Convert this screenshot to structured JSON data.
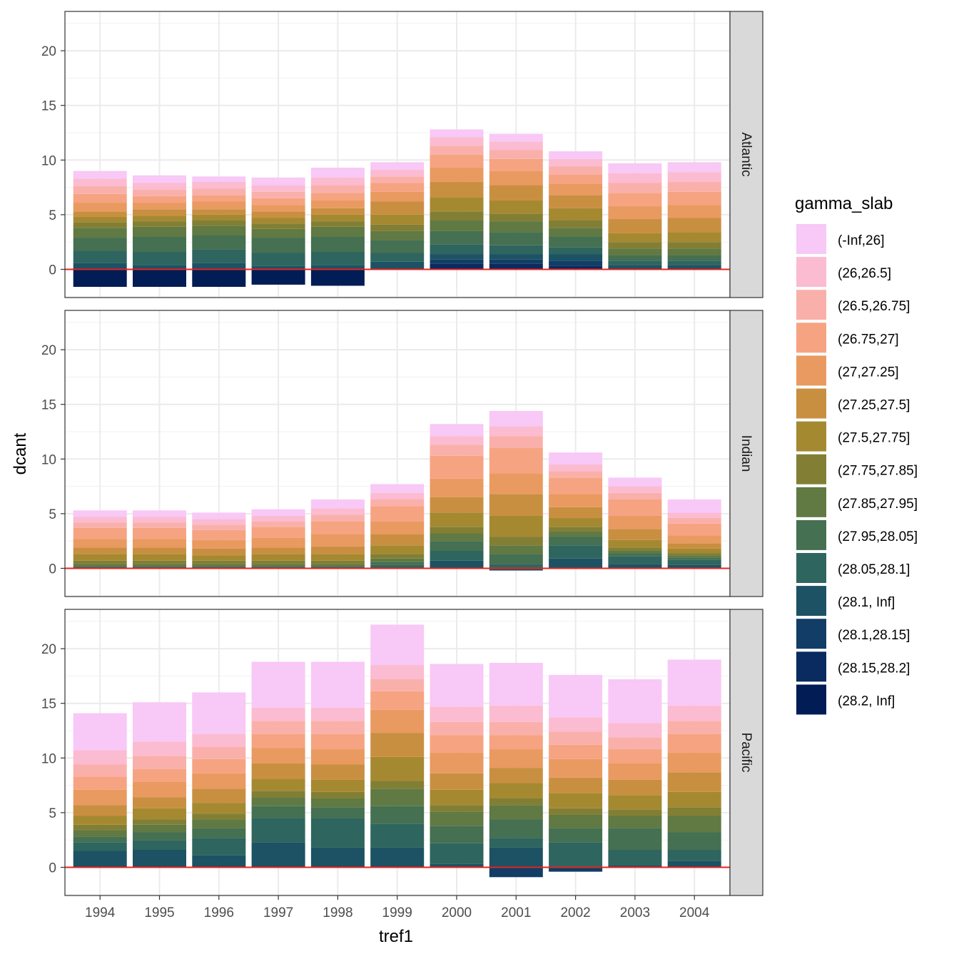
{
  "chart_data": {
    "type": "bar",
    "stacked": true,
    "xlabel": "tref1",
    "ylabel": "dcant",
    "ylim": [
      -3.2,
      23.5
    ],
    "yticks": [
      0,
      5,
      10,
      15,
      20
    ],
    "grid": true,
    "legend_position": "right",
    "hline": {
      "y": 0,
      "color": "#e8231c"
    },
    "legend": {
      "title": "gamma_slab",
      "entries": [
        {
          "label": "(-Inf,26]",
          "color": "#f8c8f6"
        },
        {
          "label": "(26,26.5]",
          "color": "#fbbbd1"
        },
        {
          "label": "(26.5,26.75]",
          "color": "#fab0aa"
        },
        {
          "label": "(26.75,27]",
          "color": "#f6a382"
        },
        {
          "label": "(27,27.25]",
          "color": "#e99a60"
        },
        {
          "label": "(27.25,27.5]",
          "color": "#c98f41"
        },
        {
          "label": "(27.5,27.75]",
          "color": "#a58931"
        },
        {
          "label": "(27.75,27.85]",
          "color": "#827f35"
        },
        {
          "label": "(27.85,27.95]",
          "color": "#617942"
        },
        {
          "label": "(27.95,28.05]",
          "color": "#457051"
        },
        {
          "label": "(28.05,28.1]",
          "color": "#2f655f"
        },
        {
          "label": "(28.1, Inf]",
          "color": "#1c5264"
        },
        {
          "label": "(28.1,28.15]",
          "color": "#113d66"
        },
        {
          "label": "(28.15,28.2]",
          "color": "#0a2b60"
        },
        {
          "label": "(28.2, Inf]",
          "color": "#021c55"
        }
      ]
    },
    "categories": [
      "1994",
      "1995",
      "1996",
      "1997",
      "1998",
      "1999",
      "2000",
      "2001",
      "2002",
      "2003",
      "2004"
    ],
    "panels": [
      {
        "label": "Atlantic",
        "values": [
          [
            0.7,
            0.7,
            0.5,
            0.7,
            0.9,
            0.7,
            0.7,
            0.7,
            0.7,
            0.9,
            0.9
          ],
          [
            0.7,
            0.6,
            0.6,
            0.6,
            0.7,
            0.6,
            0.8,
            0.8,
            0.7,
            0.9,
            0.9
          ],
          [
            0.7,
            0.6,
            0.6,
            0.6,
            0.7,
            0.6,
            0.8,
            0.8,
            0.7,
            0.9,
            0.9
          ],
          [
            0.8,
            0.6,
            0.6,
            0.6,
            0.7,
            0.8,
            1.2,
            1.1,
            0.9,
            1.2,
            1.2
          ],
          [
            0.8,
            0.6,
            0.7,
            0.6,
            0.7,
            0.9,
            1.3,
            1.3,
            1.0,
            1.2,
            1.2
          ],
          [
            0.5,
            0.6,
            0.5,
            0.6,
            0.6,
            1.2,
            1.4,
            1.4,
            1.2,
            1.3,
            1.3
          ],
          [
            0.5,
            0.5,
            0.5,
            0.5,
            0.6,
            0.9,
            1.3,
            1.2,
            1.1,
            0.8,
            0.9
          ],
          [
            0.5,
            0.5,
            0.5,
            0.5,
            0.5,
            0.6,
            0.8,
            0.7,
            0.7,
            0.6,
            0.6
          ],
          [
            0.9,
            0.9,
            0.9,
            0.8,
            0.9,
            0.8,
            1.0,
            1.0,
            0.8,
            0.6,
            0.6
          ],
          [
            1.2,
            1.4,
            1.3,
            1.4,
            1.4,
            1.2,
            1.2,
            1.2,
            1.0,
            0.5,
            0.5
          ],
          [
            1.1,
            1.2,
            1.2,
            1.2,
            1.2,
            0.8,
            0.9,
            0.8,
            0.6,
            0.4,
            0.4
          ],
          [
            0.6,
            0.4,
            0.6,
            0.3,
            0.4,
            0.7,
            0.5,
            0.5,
            0.6,
            0.3,
            0.3
          ],
          [
            0,
            0,
            0,
            0,
            0,
            0,
            0.4,
            0.4,
            0.5,
            0.1,
            0.1
          ],
          [
            0,
            0,
            0,
            0,
            0,
            0,
            0.5,
            0.5,
            0.3,
            0,
            0
          ],
          [
            -1.6,
            -1.6,
            -1.6,
            -1.4,
            -1.5,
            0,
            0,
            0,
            0,
            0,
            0
          ]
        ]
      },
      {
        "label": "Indian",
        "values": [
          [
            0.6,
            0.6,
            0.6,
            0.6,
            0.8,
            0.8,
            1.1,
            1.4,
            1.1,
            0.8,
            1.2
          ],
          [
            0.5,
            0.5,
            0.5,
            0.5,
            0.6,
            0.6,
            0.8,
            0.9,
            0.6,
            0.6,
            0.5
          ],
          [
            0.5,
            0.5,
            0.5,
            0.5,
            0.6,
            0.6,
            1.0,
            1.1,
            0.6,
            0.6,
            0.5
          ],
          [
            1.0,
            1.0,
            0.9,
            1.0,
            1.2,
            1.4,
            2.1,
            2.3,
            1.5,
            1.5,
            1.1
          ],
          [
            0.8,
            0.8,
            0.8,
            0.9,
            1.1,
            1.2,
            1.7,
            1.9,
            1.2,
            1.2,
            0.7
          ],
          [
            0.6,
            0.6,
            0.6,
            0.6,
            0.7,
            1.0,
            1.4,
            2.0,
            1.0,
            1.0,
            0.5
          ],
          [
            0.6,
            0.6,
            0.5,
            0.6,
            0.6,
            0.8,
            1.3,
            1.9,
            0.8,
            0.7,
            0.4
          ],
          [
            0.3,
            0.3,
            0.3,
            0.3,
            0.3,
            0.4,
            0.6,
            0.8,
            0.4,
            0.3,
            0.2
          ],
          [
            0.2,
            0.2,
            0.2,
            0.2,
            0.2,
            0.3,
            0.7,
            0.8,
            0.5,
            0.2,
            0.2
          ],
          [
            0.1,
            0.1,
            0.1,
            0.1,
            0.1,
            0.3,
            0.9,
            0.9,
            0.8,
            0.3,
            0.2
          ],
          [
            0.1,
            0.1,
            0.1,
            0.1,
            0.1,
            0.3,
            0.9,
            0.4,
            1.2,
            0.7,
            0.5
          ],
          [
            0,
            0,
            0,
            0,
            0,
            0,
            0.7,
            -0.2,
            0.9,
            0.4,
            0.3
          ],
          [
            0,
            0,
            0,
            0,
            0,
            0,
            0,
            0,
            0,
            0,
            0
          ],
          [
            0,
            0,
            0,
            0,
            0,
            0,
            0,
            0,
            0,
            0,
            0
          ],
          [
            0,
            0,
            0,
            0,
            0,
            0,
            0,
            0,
            0,
            0,
            0
          ]
        ]
      },
      {
        "label": "Pacific",
        "values": [
          [
            3.4,
            3.6,
            3.8,
            4.2,
            4.2,
            3.7,
            3.9,
            3.9,
            3.9,
            4.0,
            4.2
          ],
          [
            1.3,
            1.3,
            1.2,
            1.2,
            1.2,
            1.3,
            1.4,
            1.5,
            1.3,
            1.3,
            1.4
          ],
          [
            1.1,
            1.2,
            1.1,
            1.2,
            1.2,
            1.1,
            1.2,
            1.2,
            1.2,
            1.1,
            1.2
          ],
          [
            1.2,
            1.2,
            1.3,
            1.3,
            1.4,
            1.7,
            1.6,
            1.3,
            1.3,
            1.3,
            1.7
          ],
          [
            1.4,
            1.4,
            1.4,
            1.4,
            1.4,
            2.1,
            1.9,
            1.7,
            1.7,
            1.5,
            1.8
          ],
          [
            1.0,
            1.0,
            1.3,
            1.4,
            1.4,
            2.2,
            1.5,
            1.4,
            1.4,
            1.4,
            1.8
          ],
          [
            0.8,
            1.0,
            1.0,
            1.1,
            1.1,
            2.2,
            1.4,
            1.4,
            1.4,
            1.3,
            1.4
          ],
          [
            0.5,
            0.5,
            0.5,
            0.6,
            0.6,
            0.7,
            0.6,
            0.6,
            0.6,
            0.6,
            0.8
          ],
          [
            0.6,
            0.7,
            0.8,
            0.8,
            0.8,
            1.6,
            1.3,
            1.3,
            1.2,
            1.1,
            1.5
          ],
          [
            0.5,
            0.7,
            0.9,
            1.1,
            1.0,
            1.6,
            1.6,
            1.7,
            1.3,
            2.0,
            1.6
          ],
          [
            0.8,
            0.9,
            1.6,
            2.2,
            2.7,
            2.2,
            1.9,
            0.9,
            2.3,
            1.4,
            1.0
          ],
          [
            1.5,
            1.6,
            1.1,
            2.3,
            1.8,
            1.8,
            0.3,
            1.8,
            0,
            0.2,
            0.6
          ],
          [
            0,
            0,
            0,
            0,
            0,
            0,
            0,
            -0.9,
            -0.4,
            0,
            0
          ],
          [
            0,
            0,
            0,
            0,
            0,
            0,
            0,
            0,
            0,
            0,
            0
          ],
          [
            0,
            0,
            0,
            0,
            0,
            0,
            0,
            0,
            0,
            0,
            0
          ]
        ]
      }
    ]
  }
}
